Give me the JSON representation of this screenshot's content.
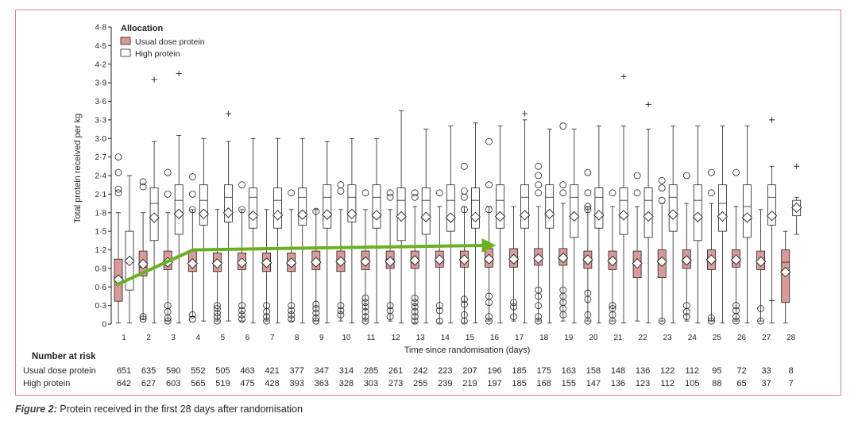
{
  "caption": {
    "label": "Figure 2:",
    "text": " Protein received in the first 28 days after randomisation"
  },
  "colors": {
    "frame": "#d6829a",
    "usual_fill": "#d99a9a",
    "high_fill": "#ffffff",
    "arrow": "#6ab023",
    "ink": "#231f20"
  },
  "chart_data": {
    "type": "box",
    "title": "",
    "xlabel": "Time since randomisation (days)",
    "ylabel": "Total protein received per kg",
    "ylim": [
      0,
      4.8
    ],
    "yticks": [
      0,
      0.3,
      0.6,
      0.9,
      1.2,
      1.5,
      1.8,
      2.1,
      2.4,
      2.7,
      3.0,
      3.3,
      3.6,
      3.9,
      4.2,
      4.5,
      4.8
    ],
    "ytick_labels": [
      "0",
      "0·3",
      "0·6",
      "0·9",
      "1·2",
      "1·5",
      "1·8",
      "2·1",
      "2·4",
      "2·7",
      "3·0",
      "3·3",
      "3·6",
      "3·9",
      "4·2",
      "4·5",
      "4·8"
    ],
    "categories": [
      "1",
      "2",
      "3",
      "4",
      "5",
      "6",
      "7",
      "8",
      "9",
      "10",
      "11",
      "12",
      "13",
      "14",
      "15",
      "16",
      "17",
      "18",
      "19",
      "20",
      "21",
      "22",
      "23",
      "24",
      "25",
      "26",
      "27",
      "28"
    ],
    "legend": {
      "title": "Allocation",
      "position": "top-left",
      "entries": [
        "Usual dose protein",
        "High protein"
      ]
    },
    "series": [
      {
        "name": "Usual dose protein",
        "mean": [
          0.72,
          0.97,
          1.0,
          0.98,
          0.98,
          0.99,
          0.99,
          0.99,
          1.0,
          1.01,
          1.01,
          1.01,
          1.03,
          1.04,
          1.04,
          1.05,
          1.05,
          1.06,
          1.07,
          1.04,
          1.02,
          0.98,
          1.01,
          1.03,
          1.04,
          1.04,
          1.01,
          0.84
        ],
        "q1": [
          0.37,
          0.78,
          0.88,
          0.85,
          0.85,
          0.88,
          0.85,
          0.85,
          0.88,
          0.85,
          0.88,
          0.9,
          0.9,
          0.92,
          0.92,
          0.92,
          0.92,
          0.95,
          0.95,
          0.9,
          0.88,
          0.75,
          0.75,
          0.9,
          0.88,
          0.92,
          0.88,
          0.35
        ],
        "median": [
          0.75,
          0.92,
          1.0,
          1.0,
          1.0,
          1.0,
          1.0,
          1.0,
          1.02,
          1.02,
          1.02,
          1.05,
          1.05,
          1.05,
          1.05,
          1.05,
          1.05,
          1.08,
          1.08,
          1.05,
          1.02,
          0.95,
          1.0,
          1.05,
          1.05,
          1.05,
          1.0,
          1.0
        ],
        "q3": [
          1.05,
          1.18,
          1.18,
          1.18,
          1.15,
          1.15,
          1.15,
          1.15,
          1.18,
          1.18,
          1.18,
          1.18,
          1.18,
          1.18,
          1.18,
          1.22,
          1.22,
          1.22,
          1.22,
          1.18,
          1.18,
          1.18,
          1.2,
          1.2,
          1.2,
          1.2,
          1.18,
          1.2
        ],
        "wlo": [
          0.02,
          0.08,
          0.05,
          0.12,
          0.05,
          0.05,
          0.05,
          0.05,
          0.05,
          0.05,
          0.05,
          0.05,
          0.02,
          0.02,
          0.02,
          0.05,
          0.05,
          0.05,
          0.05,
          0.05,
          0.05,
          0.05,
          0.05,
          0.05,
          0.05,
          0.05,
          0.05,
          0.02
        ],
        "whi": [
          1.8,
          1.8,
          1.8,
          1.85,
          1.85,
          1.85,
          1.85,
          1.85,
          1.85,
          1.85,
          1.85,
          1.85,
          1.9,
          1.9,
          1.9,
          1.9,
          1.9,
          1.9,
          1.95,
          1.9,
          1.9,
          1.9,
          1.95,
          1.95,
          1.95,
          1.9,
          1.85,
          1.5
        ]
      },
      {
        "name": "High protein",
        "mean": [
          1.02,
          1.72,
          1.78,
          1.78,
          1.8,
          1.75,
          1.76,
          1.77,
          1.77,
          1.78,
          1.76,
          1.74,
          1.73,
          1.72,
          1.73,
          1.74,
          1.76,
          1.78,
          1.74,
          1.76,
          1.76,
          1.74,
          1.77,
          1.73,
          1.74,
          1.72,
          1.75,
          1.88
        ],
        "q1": [
          0.55,
          1.35,
          1.45,
          1.6,
          1.65,
          1.55,
          1.55,
          1.6,
          1.55,
          1.65,
          1.55,
          1.35,
          1.45,
          1.5,
          1.55,
          1.55,
          1.55,
          1.55,
          1.4,
          1.55,
          1.45,
          1.4,
          1.5,
          1.35,
          1.5,
          1.4,
          1.6,
          1.75
        ],
        "median": [
          1.0,
          1.95,
          2.0,
          2.0,
          2.05,
          2.05,
          2.0,
          2.05,
          2.05,
          2.05,
          2.05,
          2.0,
          2.0,
          2.0,
          2.0,
          2.0,
          2.05,
          2.05,
          2.05,
          2.05,
          2.0,
          2.0,
          2.05,
          2.0,
          1.95,
          1.9,
          2.05,
          1.9
        ],
        "q3": [
          1.5,
          2.2,
          2.25,
          2.25,
          2.25,
          2.2,
          2.2,
          2.2,
          2.25,
          2.25,
          2.25,
          2.2,
          2.2,
          2.25,
          2.2,
          2.25,
          2.25,
          2.25,
          2.25,
          2.2,
          2.2,
          2.2,
          2.25,
          2.25,
          2.25,
          2.25,
          2.25,
          2.0
        ],
        "wlo": [
          0.02,
          0.02,
          0.02,
          0.05,
          0.05,
          0.02,
          0.02,
          0.02,
          0.02,
          0.02,
          0.02,
          0.02,
          0.02,
          0.02,
          0.02,
          0.02,
          0.02,
          0.02,
          0.02,
          0.02,
          0.02,
          0.02,
          0.02,
          0.02,
          0.02,
          0.02,
          0.02,
          1.45
        ],
        "whi": [
          2.4,
          2.95,
          3.05,
          3.0,
          2.95,
          3.0,
          3.0,
          3.0,
          2.95,
          3.0,
          3.0,
          3.45,
          3.15,
          3.2,
          3.25,
          3.2,
          3.3,
          3.15,
          3.15,
          3.2,
          3.2,
          3.15,
          3.2,
          3.2,
          3.2,
          3.2,
          2.55,
          2.05
        ]
      }
    ],
    "outliers": {
      "Usual dose protein": [
        [
          2.7,
          2.45,
          2.18,
          2.12
        ],
        [
          2.3,
          2.22,
          0.12,
          0.08
        ],
        [
          2.45,
          2.1,
          0.3,
          0.2,
          0.1,
          0.05
        ],
        [
          2.38,
          2.1,
          1.85,
          0.15,
          0.08
        ],
        [
          0.3,
          0.25,
          0.18,
          0.12,
          0.05
        ],
        [
          2.25,
          1.85,
          0.3,
          0.22,
          0.15,
          0.08
        ],
        [
          0.3,
          0.2,
          0.12,
          0.05
        ],
        [
          2.12,
          0.3,
          0.22,
          0.15,
          0.08
        ],
        [
          1.82,
          0.32,
          0.25,
          0.18,
          0.1,
          0.05
        ],
        [
          2.25,
          2.15,
          0.3,
          0.22,
          0.15
        ],
        [
          2.12,
          0.42,
          0.35,
          0.28,
          0.2,
          0.12,
          0.05
        ],
        [
          2.12,
          2.05,
          0.3,
          0.22,
          0.12
        ],
        [
          2.12,
          2.05,
          0.42,
          0.35,
          0.28,
          0.2,
          0.12,
          0.05
        ],
        [
          2.12,
          0.3,
          0.22,
          0.05
        ],
        [
          2.55,
          2.15,
          2.05,
          1.85,
          0.4,
          0.32,
          0.15,
          0.05
        ],
        [
          2.95,
          2.25,
          1.85,
          0.45,
          0.35,
          0.12,
          0.05
        ],
        [
          0.35,
          0.28,
          0.12
        ],
        [
          2.55,
          2.4,
          2.25,
          2.12,
          0.55,
          0.45,
          0.3,
          0.12,
          0.05
        ],
        [
          3.2,
          2.25,
          2.12,
          0.55,
          0.45,
          0.35,
          0.25,
          0.15
        ],
        [
          2.45,
          2.12,
          1.9,
          1.85,
          0.5,
          0.4,
          0.15,
          0.05
        ],
        [
          2.12,
          0.3,
          0.25,
          0.15,
          0.05
        ],
        [
          2.4,
          2.12
        ],
        [
          2.32,
          2.2,
          2.0,
          0.05
        ],
        [
          2.4,
          0.3,
          0.2,
          0.12
        ],
        [
          2.45,
          2.12,
          0.1,
          0.05
        ],
        [
          2.45,
          0.3,
          0.22,
          0.12,
          0.05
        ],
        [
          0.25,
          0.05
        ],
        []
      ],
      "High protein": [
        [],
        [
          3.95
        ],
        [
          4.05
        ],
        [],
        [
          3.4
        ],
        [],
        [],
        [],
        [],
        [],
        [],
        [],
        [],
        [],
        [],
        [],
        [
          3.4
        ],
        [],
        [],
        [],
        [
          4.0
        ],
        [
          3.55
        ],
        [],
        [],
        [],
        [],
        [
          3.3,
          0.38
        ],
        [
          2.55
        ]
      ]
    },
    "number_at_risk": {
      "title": "Number at risk",
      "rows": [
        {
          "label": "Usual dose protein",
          "values": [
            "651",
            "635",
            "590",
            "552",
            "505",
            "463",
            "421",
            "377",
            "347",
            "314",
            "285",
            "261",
            "242",
            "223",
            "207",
            "196",
            "185",
            "175",
            "163",
            "158",
            "148",
            "136",
            "122",
            "112",
            "95",
            "72",
            "33",
            "8"
          ]
        },
        {
          "label": "High protein",
          "values": [
            "642",
            "627",
            "603",
            "565",
            "519",
            "475",
            "428",
            "393",
            "363",
            "328",
            "303",
            "273",
            "255",
            "239",
            "219",
            "197",
            "185",
            "168",
            "155",
            "147",
            "136",
            "123",
            "112",
            "105",
            "88",
            "65",
            "37",
            "7"
          ]
        }
      ]
    }
  }
}
